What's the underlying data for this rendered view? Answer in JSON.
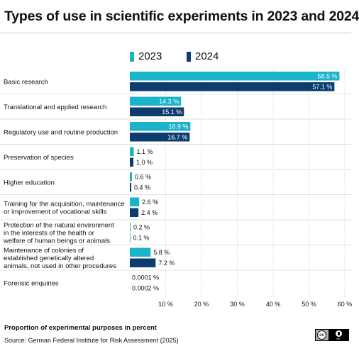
{
  "chart_data": {
    "type": "bar",
    "orientation": "horizontal",
    "title": "Types of use in scientific experiments in 2023 and 2024",
    "xlabel": "Proportion of experimental purposes in percent",
    "xlim": [
      0,
      60
    ],
    "xticks": [
      10,
      20,
      30,
      40,
      50,
      60
    ],
    "xtick_labels": [
      "10 %",
      "20 %",
      "30 %",
      "40 %",
      "50 %",
      "60 %"
    ],
    "grid": true,
    "legend_position": "top",
    "categories": [
      [
        "Basic research"
      ],
      [
        "Translational and applied research"
      ],
      [
        "Regulatory use and routine production"
      ],
      [
        "Preservation of species"
      ],
      [
        "Higher education"
      ],
      [
        "Training for the acquisition, maintenance",
        "or improvement of vocational skills"
      ],
      [
        "Protection of the natural environment",
        "in the interests of the health or",
        "welfare of human beings or animals"
      ],
      [
        "Maintenance of colonies of",
        "established genetically altered",
        "animals, not used in other procedures"
      ],
      [
        "Forensic enquiries"
      ]
    ],
    "series": [
      {
        "name": "2023",
        "color": "#1ab3c8",
        "values": [
          58.5,
          14.3,
          16.9,
          1.1,
          0.6,
          2.6,
          0.2,
          5.8,
          0.0001
        ],
        "labels": [
          "58.5 %",
          "14.3 %",
          "16.9 %",
          "1.1 %",
          "0.6 %",
          "2.6 %",
          "0.2 %",
          "5.8 %",
          "0.0001 %"
        ]
      },
      {
        "name": "2024",
        "color": "#0d3c6e",
        "values": [
          57.1,
          15.1,
          16.7,
          1.0,
          0.4,
          2.4,
          0.1,
          7.2,
          0.0002
        ],
        "labels": [
          "57.1 %",
          "15.1 %",
          "16.7 %",
          "1.0 %",
          "0.4 %",
          "2.4 %",
          "0.1 %",
          "7.2 %",
          "0.0002 %"
        ]
      }
    ]
  },
  "source": "Source: German Federal Institute for Risk Assessment (2025)",
  "license": {
    "cc": "cc",
    "by": "BY"
  }
}
